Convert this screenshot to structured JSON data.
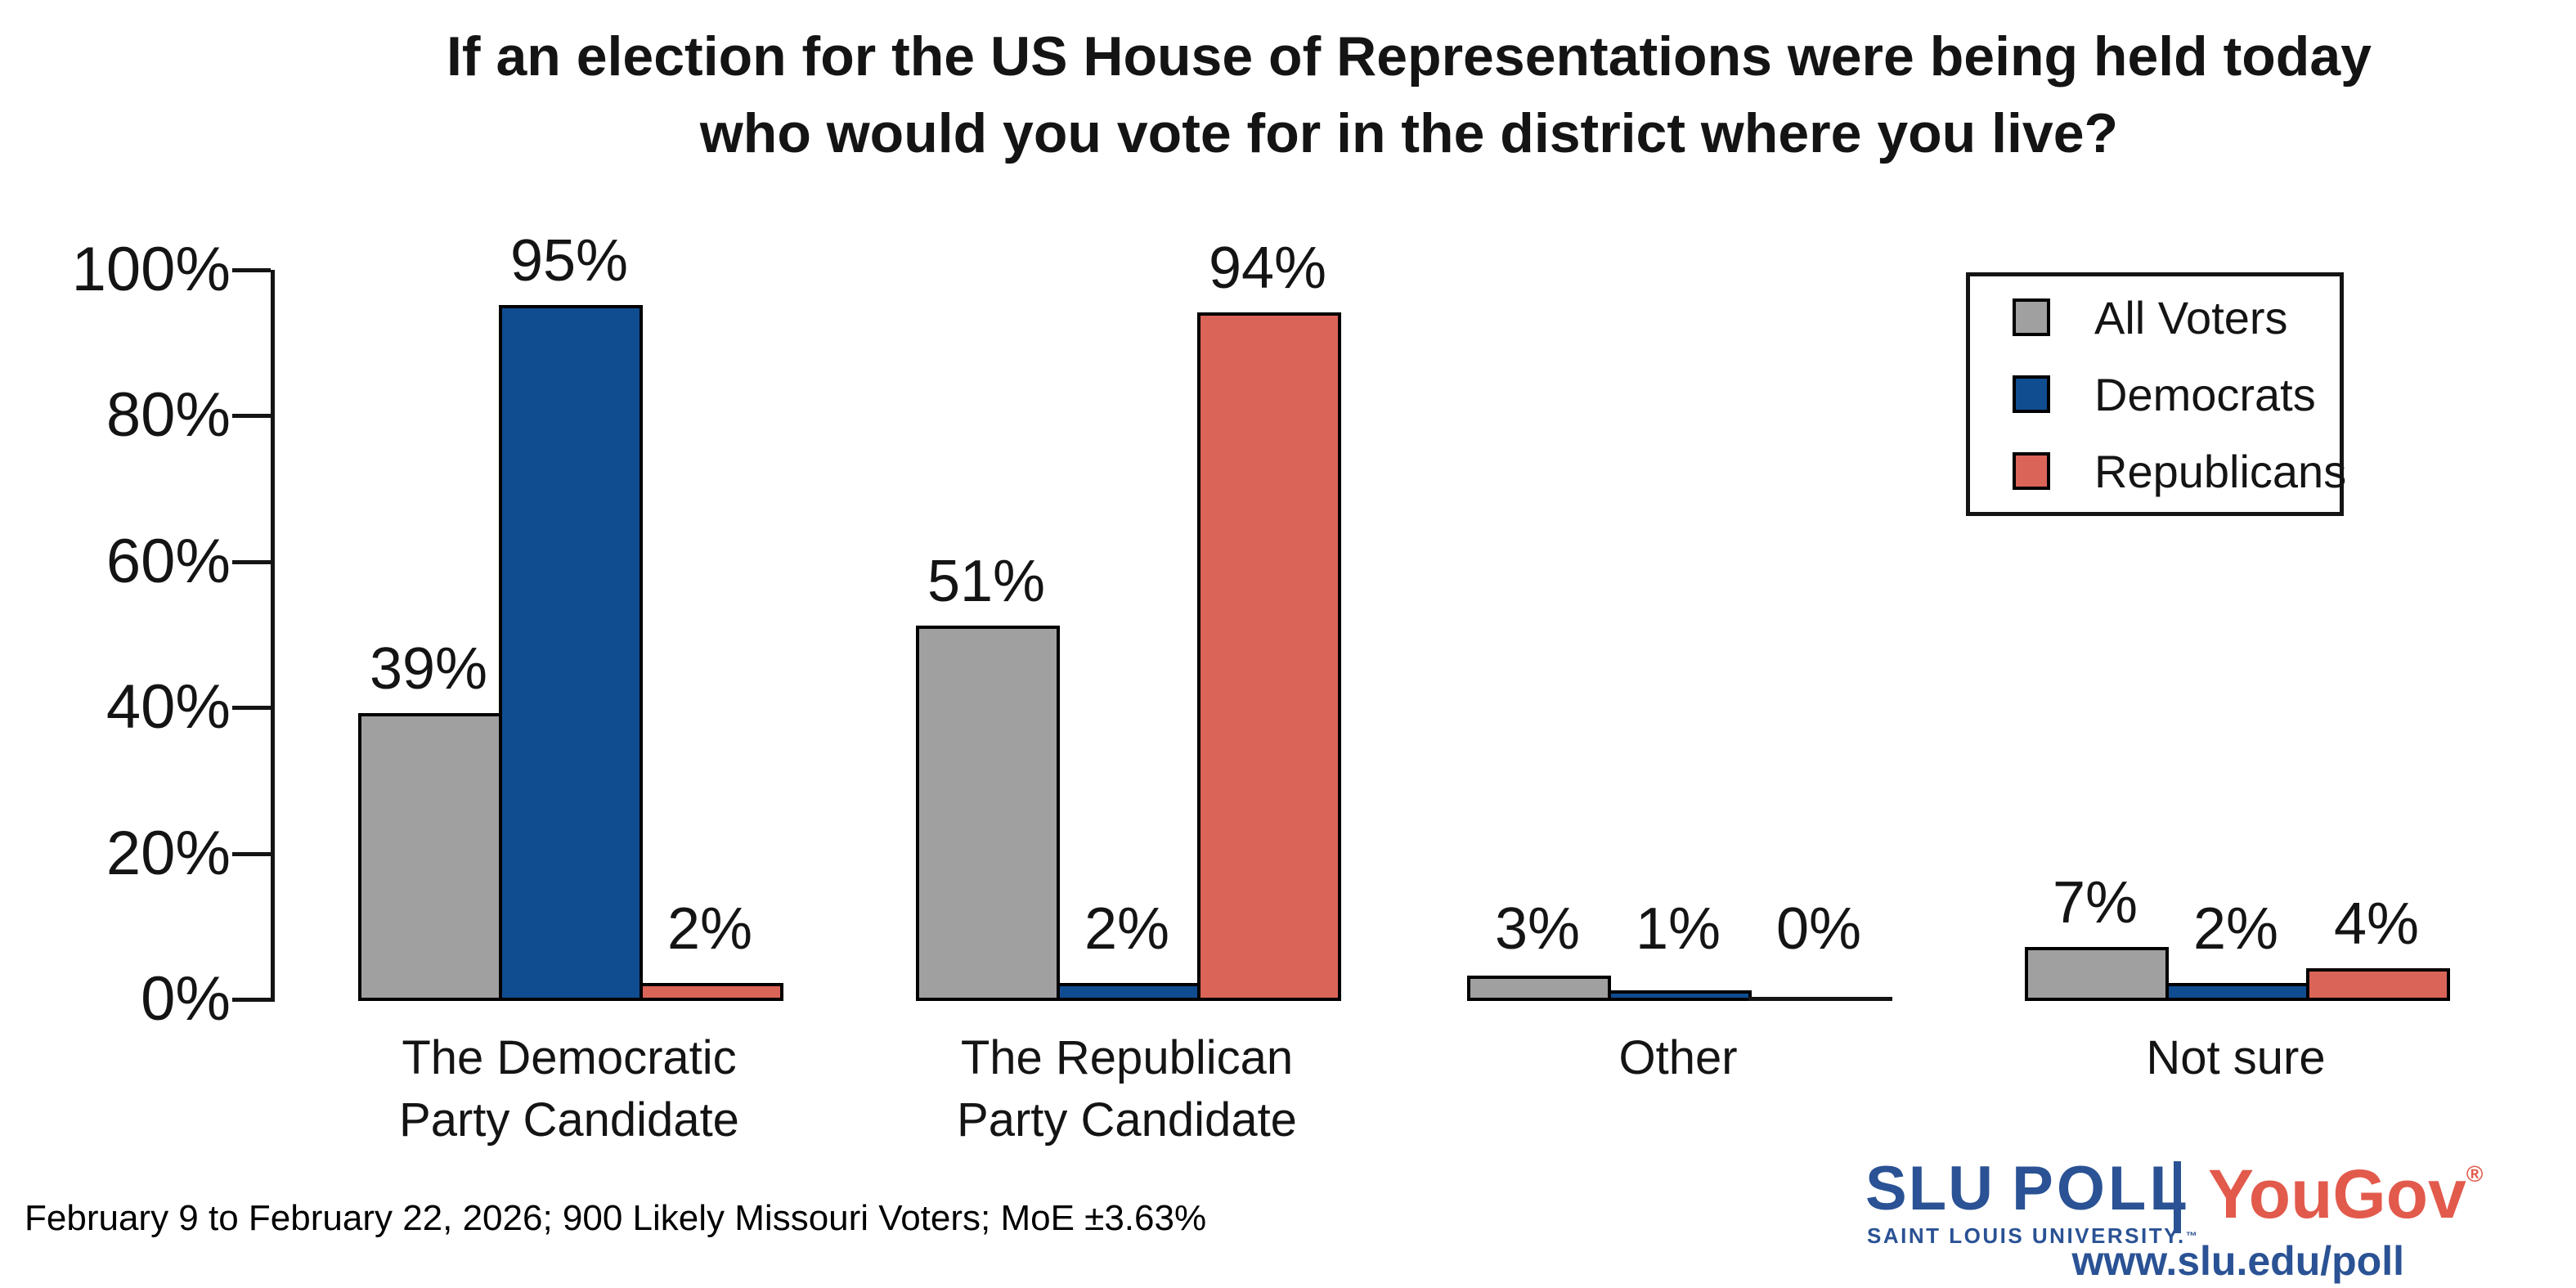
{
  "title": {
    "line1": "If an election for the US House of Representations were being held today",
    "line2": "who would you vote for in the district where you live?"
  },
  "chart_data": {
    "type": "bar",
    "title": "If an election for the US House of Representations were being held today who would you vote for in the district where you live?",
    "categories": [
      "The Democratic Party Candidate",
      "The Republican Party Candidate",
      "Other",
      "Not sure"
    ],
    "category_label_lines": [
      [
        "The Democratic",
        "Party Candidate"
      ],
      [
        "The Republican",
        "Party Candidate"
      ],
      [
        "Other"
      ],
      [
        "Not sure"
      ]
    ],
    "series": [
      {
        "name": "All Voters",
        "color": "#A0A0A0",
        "values": [
          39,
          51,
          3,
          7
        ]
      },
      {
        "name": "Democrats",
        "color": "#0F4D90",
        "values": [
          95,
          2,
          1,
          2
        ]
      },
      {
        "name": "Republicans",
        "color": "#DB6458",
        "values": [
          2,
          94,
          0,
          4
        ]
      }
    ],
    "value_suffix": "%",
    "xlabel": "",
    "ylabel": "",
    "ylim": [
      0,
      100
    ],
    "yticks": [
      {
        "pct": 0,
        "label": "0%"
      },
      {
        "pct": 20,
        "label": "20%"
      },
      {
        "pct": 40,
        "label": "40%"
      },
      {
        "pct": 60,
        "label": "60%"
      },
      {
        "pct": 80,
        "label": "80%"
      },
      {
        "pct": 100,
        "label": "100%"
      }
    ],
    "grid": false,
    "legend_position": "top-right",
    "bar_outline_color": "#000000"
  },
  "footer": {
    "text": "February 9 to February 22, 2026; 900 Likely Missouri Voters; MoE ±3.63%"
  },
  "branding": {
    "slu_word": "SLU",
    "poll_word": "POLL",
    "tagline": "SAINT LOUIS UNIVERSITY.",
    "trademark": "™",
    "partner": "YouGov",
    "registered": "®",
    "url": "www.slu.edu/poll",
    "slu_blue": "#2A5294",
    "yougov_red": "#E25A4C"
  }
}
